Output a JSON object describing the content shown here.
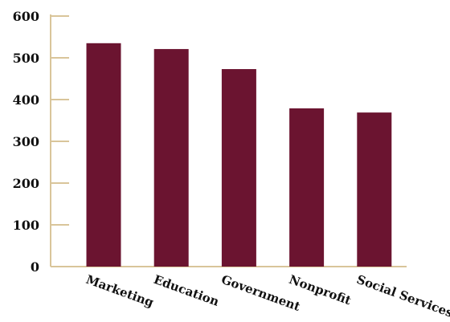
{
  "colors": {
    "bar": "#6b1430",
    "axis": "#d9c59a"
  },
  "chart_data": {
    "type": "bar",
    "title": "",
    "xlabel": "",
    "ylabel": "",
    "categories": [
      "Marketing",
      "Education",
      "Government",
      "Nonprofit",
      "Social Services"
    ],
    "values": [
      535,
      521,
      473,
      379,
      369
    ],
    "ylim": [
      0,
      600
    ],
    "yticks": [
      "0",
      "100",
      "200",
      "300",
      "400",
      "500",
      "600"
    ],
    "grid": false,
    "legend": "none"
  }
}
